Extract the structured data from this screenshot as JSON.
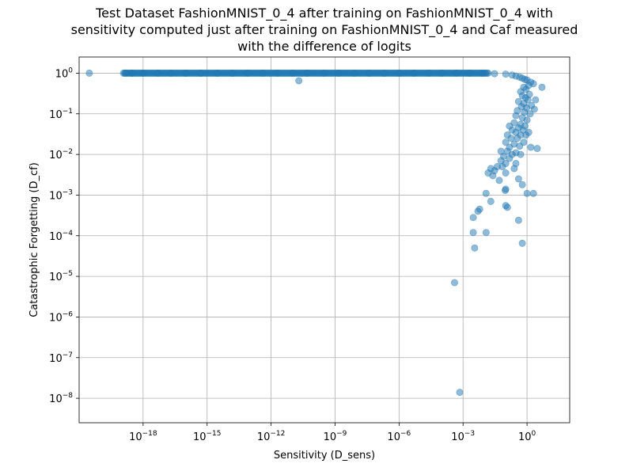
{
  "chart_data": {
    "type": "scatter",
    "title_lines": [
      "Test Dataset FashionMNIST_0_4 after training on FashionMNIST_0_4 with",
      "sensitivity computed just after training on FashionMNIST_0_4 and Caf measured",
      "with the difference of logits"
    ],
    "xlabel": "Sensitivity (D_sens)",
    "ylabel": "Catastrophic Forgetting (D_cf)",
    "x_scale": "log",
    "y_scale": "log",
    "xlim": [
      1e-21,
      100
    ],
    "ylim": [
      2.5e-09,
      2.5
    ],
    "x_ticks": [
      {
        "value": 1e-18,
        "base": "10",
        "exp": "−18"
      },
      {
        "value": 1e-15,
        "base": "10",
        "exp": "−15"
      },
      {
        "value": 1e-12,
        "base": "10",
        "exp": "−12"
      },
      {
        "value": 1e-09,
        "base": "10",
        "exp": "−9"
      },
      {
        "value": 1e-06,
        "base": "10",
        "exp": "−6"
      },
      {
        "value": 0.001,
        "base": "10",
        "exp": "−3"
      },
      {
        "value": 1,
        "base": "10",
        "exp": "0"
      }
    ],
    "y_ticks": [
      {
        "value": 1e-08,
        "base": "10",
        "exp": "−8"
      },
      {
        "value": 1e-07,
        "base": "10",
        "exp": "−7"
      },
      {
        "value": 1e-06,
        "base": "10",
        "exp": "−6"
      },
      {
        "value": 1e-05,
        "base": "10",
        "exp": "−5"
      },
      {
        "value": 0.0001,
        "base": "10",
        "exp": "−4"
      },
      {
        "value": 0.001,
        "base": "10",
        "exp": "−3"
      },
      {
        "value": 0.01,
        "base": "10",
        "exp": "−2"
      },
      {
        "value": 0.1,
        "base": "10",
        "exp": "−1"
      },
      {
        "value": 1,
        "base": "10",
        "exp": "0"
      }
    ],
    "grid": true,
    "marker_color": "#1f77b4",
    "marker_opacity": 0.5,
    "series": [
      {
        "points": [
          [
            3e-21,
            1.0
          ],
          [
            1.5e-19,
            1.0
          ],
          [
            3e-19,
            1.0
          ],
          [
            1e-18,
            1.0
          ],
          [
            5e-18,
            1.0
          ],
          [
            2e-17,
            1.0
          ],
          [
            1e-16,
            1.0
          ],
          [
            5e-16,
            1.0
          ],
          [
            3e-15,
            1.0
          ],
          [
            1.5e-14,
            1.0
          ],
          [
            8e-14,
            1.0
          ],
          [
            4e-13,
            1.0
          ],
          [
            2e-12,
            1.0
          ],
          [
            1e-11,
            1.0
          ],
          [
            2e-11,
            0.65
          ],
          [
            5e-11,
            1.0
          ],
          [
            3e-10,
            1.0
          ],
          [
            1.5e-09,
            1.0
          ],
          [
            8e-09,
            1.0
          ],
          [
            4e-08,
            1.0
          ],
          [
            2e-07,
            1.0
          ],
          [
            1e-06,
            1.0
          ],
          [
            5e-06,
            1.0
          ],
          [
            2.5e-05,
            1.0
          ],
          [
            0.0001,
            1.0
          ],
          [
            0.0005,
            1.0
          ],
          [
            0.002,
            1.0
          ],
          [
            0.008,
            1.0
          ],
          [
            0.03,
            0.97
          ],
          [
            0.1,
            0.95
          ],
          [
            0.2,
            0.9
          ],
          [
            0.3,
            0.85
          ],
          [
            0.45,
            0.8
          ],
          [
            0.6,
            0.75
          ],
          [
            0.8,
            0.7
          ],
          [
            1.0,
            0.68
          ],
          [
            1.5,
            0.6
          ],
          [
            2.0,
            0.55
          ],
          [
            1.2,
            0.5
          ],
          [
            0.7,
            0.45
          ],
          [
            0.9,
            0.4
          ],
          [
            0.5,
            0.35
          ],
          [
            1.3,
            0.3
          ],
          [
            0.6,
            0.28
          ],
          [
            0.85,
            0.25
          ],
          [
            1.1,
            0.22
          ],
          [
            2.5,
            0.22
          ],
          [
            0.4,
            0.2
          ],
          [
            0.7,
            0.18
          ],
          [
            1.6,
            0.16
          ],
          [
            0.55,
            0.15
          ],
          [
            0.95,
            0.14
          ],
          [
            2.2,
            0.13
          ],
          [
            0.35,
            0.12
          ],
          [
            0.75,
            0.11
          ],
          [
            1.4,
            0.1
          ],
          [
            0.3,
            0.09
          ],
          [
            0.6,
            0.08
          ],
          [
            1.0,
            0.07
          ],
          [
            0.25,
            0.06
          ],
          [
            0.5,
            0.055
          ],
          [
            0.8,
            0.05
          ],
          [
            0.15,
            0.05
          ],
          [
            0.4,
            0.045
          ],
          [
            0.2,
            0.04
          ],
          [
            0.65,
            0.04
          ],
          [
            0.3,
            0.035
          ],
          [
            1.2,
            0.035
          ],
          [
            0.12,
            0.03
          ],
          [
            0.5,
            0.03
          ],
          [
            0.9,
            0.03
          ],
          [
            0.18,
            0.025
          ],
          [
            0.35,
            0.025
          ],
          [
            0.7,
            0.02
          ],
          [
            0.1,
            0.02
          ],
          [
            0.25,
            0.018
          ],
          [
            0.45,
            0.016
          ],
          [
            0.15,
            0.015
          ],
          [
            1.5,
            0.015
          ],
          [
            3.0,
            0.014
          ],
          [
            0.06,
            0.012
          ],
          [
            0.12,
            0.012
          ],
          [
            0.3,
            0.011
          ],
          [
            0.2,
            0.01
          ],
          [
            0.5,
            0.01
          ],
          [
            0.08,
            0.009
          ],
          [
            0.15,
            0.008
          ],
          [
            0.06,
            0.007
          ],
          [
            0.1,
            0.006
          ],
          [
            0.3,
            0.006
          ],
          [
            0.04,
            0.005
          ],
          [
            0.07,
            0.005
          ],
          [
            0.25,
            0.0045
          ],
          [
            0.02,
            0.0045
          ],
          [
            0.03,
            0.004
          ],
          [
            0.1,
            0.0035
          ],
          [
            0.015,
            0.0035
          ],
          [
            0.025,
            0.003
          ],
          [
            0.4,
            0.0025
          ],
          [
            0.05,
            0.0023
          ],
          [
            0.6,
            0.0018
          ],
          [
            0.1,
            0.0014
          ],
          [
            0.095,
            0.0013
          ],
          [
            0.012,
            0.0011
          ],
          [
            1.0,
            0.0011
          ],
          [
            2.0,
            0.0011
          ],
          [
            0.02,
            0.0007
          ],
          [
            0.1,
            0.00055
          ],
          [
            0.12,
            0.0005
          ],
          [
            0.006,
            0.00045
          ],
          [
            0.005,
            0.0004
          ],
          [
            0.003,
            0.00028
          ],
          [
            0.4,
            0.00024
          ],
          [
            0.003,
            0.00012
          ],
          [
            0.012,
            0.00012
          ],
          [
            0.6,
            6.5e-05
          ],
          [
            0.0035,
            5e-05
          ],
          [
            0.0004,
            7e-06
          ],
          [
            0.0007,
            1.4e-08
          ],
          [
            5.0,
            0.45
          ]
        ]
      }
    ]
  }
}
